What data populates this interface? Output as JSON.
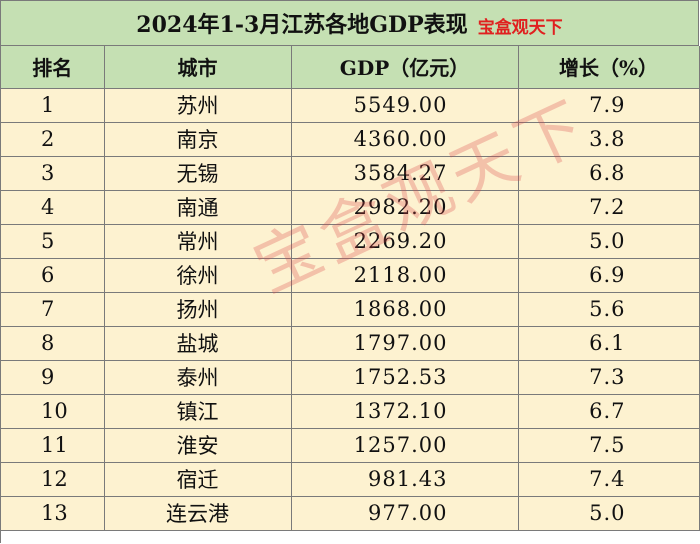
{
  "title": "2024年1-3月江苏各地GDP表现",
  "brand_tag": "宝盒观天下",
  "watermark": "宝盒观天下",
  "columns": {
    "rank": "排名",
    "city": "城市",
    "gdp": "GDP（亿元）",
    "growth": "增长（%）"
  },
  "rows": [
    {
      "rank": "1",
      "city": "苏州",
      "gdp": "5549.00",
      "growth": "7.9"
    },
    {
      "rank": "2",
      "city": "南京",
      "gdp": "4360.00",
      "growth": "3.8"
    },
    {
      "rank": "3",
      "city": "无锡",
      "gdp": "3584.27",
      "growth": "6.8"
    },
    {
      "rank": "4",
      "city": "南通",
      "gdp": "2982.20",
      "growth": "7.2"
    },
    {
      "rank": "5",
      "city": "常州",
      "gdp": "2269.20",
      "growth": "5.0"
    },
    {
      "rank": "6",
      "city": "徐州",
      "gdp": "2118.00",
      "growth": "6.9"
    },
    {
      "rank": "7",
      "city": "扬州",
      "gdp": "1868.00",
      "growth": "5.6"
    },
    {
      "rank": "8",
      "city": "盐城",
      "gdp": "1797.00",
      "growth": "6.1"
    },
    {
      "rank": "9",
      "city": "泰州",
      "gdp": "1752.53",
      "growth": "7.3"
    },
    {
      "rank": "10",
      "city": "镇江",
      "gdp": "1372.10",
      "growth": "6.7"
    },
    {
      "rank": "11",
      "city": "淮安",
      "gdp": "1257.00",
      "growth": "7.5"
    },
    {
      "rank": "12",
      "city": "宿迁",
      "gdp": "981.43",
      "growth": "7.4"
    },
    {
      "rank": "13",
      "city": "连云港",
      "gdp": "977.00",
      "growth": "5.0"
    }
  ],
  "colors": {
    "header_bg": "#c5e0b3",
    "row_bg": "#fdf2d0",
    "brand_red": "#e0201f",
    "border": "#7a7a7a"
  }
}
